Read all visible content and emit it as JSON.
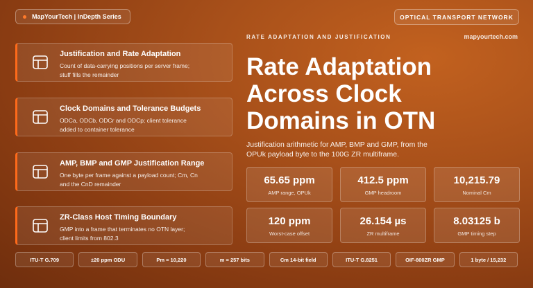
{
  "header": {
    "brand": "MapYourTech | InDepth Series",
    "tag": "OPTICAL TRANSPORT NETWORK"
  },
  "eyebrow": "RATE ADAPTATION AND JUSTIFICATION",
  "site": "mapyourtech.com",
  "title": [
    "Rate Adaptation",
    "Across Clock",
    "Domains in OTN"
  ],
  "description": "Justification arithmetic for AMP, BMP and GMP, from the OPUk payload byte to the 100G ZR multiframe.",
  "cards": [
    {
      "title": "Justification and Rate Adaptation",
      "text": "Count of data-carrying positions per server frame; stuff fills the remainder"
    },
    {
      "title": "Clock Domains and Tolerance Budgets",
      "text": "ODCa, ODCb, ODCr and ODCp; client tolerance added to container tolerance"
    },
    {
      "title": "AMP, BMP and GMP Justification Range",
      "text": "One byte per frame against a payload count; Cm, Cn and the CnD remainder"
    },
    {
      "title": "ZR-Class Host Timing Boundary",
      "text": "GMP into a frame that terminates no OTN layer; client limits from 802.3"
    }
  ],
  "stats": [
    {
      "value": "65.65 ppm",
      "label": "AMP range, OPUk"
    },
    {
      "value": "412.5 ppm",
      "label": "GMP headroom"
    },
    {
      "value": "10,215.79",
      "label": "Nominal Cm"
    },
    {
      "value": "120 ppm",
      "label": "Worst-case offset"
    },
    {
      "value": "26.154 µs",
      "label": "ZR multiframe"
    },
    {
      "value": "8.03125 b",
      "label": "GMP timing step"
    }
  ],
  "chips": [
    "ITU-T G.709",
    "±20 ppm ODU",
    "Pm = 10,220",
    "m = 257 bits",
    "Cm 14-bit field",
    "ITU-T G.8251",
    "OIF-800ZR GMP",
    "1 byte / 15,232"
  ]
}
